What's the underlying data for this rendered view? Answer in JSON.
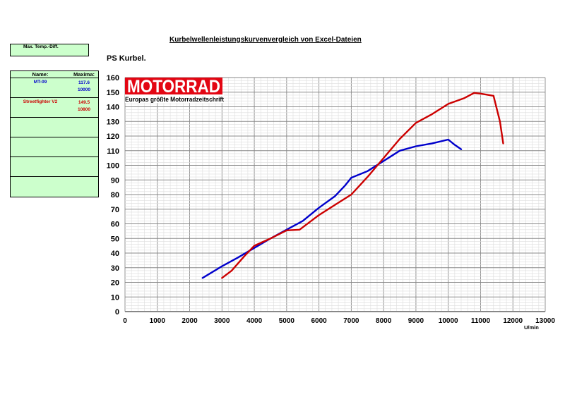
{
  "title": "Kurbelwellenleistungskurvenvergleich von Excel-Dateien",
  "temp_box": "Max. Temp.-Diff.",
  "legend": {
    "name_header": "Name:",
    "max_header": "Maxima:",
    "rows": [
      {
        "name": "MT-09",
        "max": "117.6",
        "rpm": "10000",
        "color": "#0000cc"
      },
      {
        "name": "Streetfighter V2",
        "max": "149.5",
        "rpm": "10800",
        "color": "#cc0000"
      }
    ]
  },
  "logo": {
    "brand": "MOTORRAD",
    "tagline": "Europas größte Motorradzeitschrift"
  },
  "chart_data": {
    "type": "line",
    "title": "Kurbelwellenleistungskurvenvergleich von Excel-Dateien",
    "ylabel": "PS Kurbel.",
    "xlabel": "U/min",
    "xlim": [
      0,
      13000
    ],
    "ylim": [
      0,
      160
    ],
    "grid": true,
    "xticks": [
      0,
      1000,
      2000,
      3000,
      4000,
      5000,
      6000,
      7000,
      8000,
      9000,
      10000,
      11000,
      12000,
      13000
    ],
    "yticks": [
      0,
      10,
      20,
      30,
      40,
      50,
      60,
      70,
      80,
      90,
      100,
      110,
      120,
      130,
      140,
      150,
      160
    ],
    "series": [
      {
        "name": "MT-09",
        "color": "#0000cc",
        "x": [
          2400,
          3000,
          3500,
          4000,
          4500,
          5000,
          5500,
          6000,
          6500,
          6800,
          7000,
          7500,
          8000,
          8500,
          9000,
          9500,
          10000,
          10200,
          10400
        ],
        "y": [
          23,
          31,
          37,
          43.5,
          50,
          56,
          62,
          71,
          79,
          86,
          91.5,
          96,
          103,
          110,
          113,
          115,
          117.6,
          114,
          111
        ]
      },
      {
        "name": "Streetfighter V2",
        "color": "#cc0000",
        "x": [
          3000,
          3300,
          3700,
          4000,
          4500,
          5000,
          5400,
          6000,
          6500,
          7000,
          7500,
          8000,
          8500,
          9000,
          9500,
          10000,
          10500,
          10800,
          11000,
          11400,
          11600,
          11700
        ],
        "y": [
          23,
          28,
          38,
          45,
          50,
          55.5,
          56,
          66,
          73,
          80,
          92,
          105,
          118,
          129,
          135,
          142,
          146,
          149.5,
          149,
          147.5,
          130,
          115
        ]
      }
    ]
  }
}
